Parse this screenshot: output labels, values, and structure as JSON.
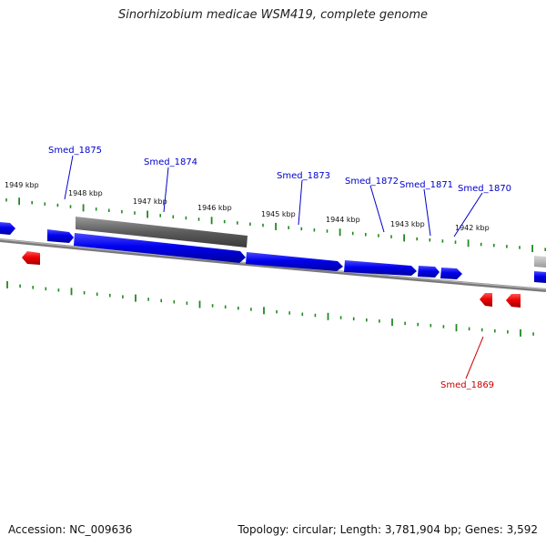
{
  "title": "Sinorhizobium medicae WSM419, complete genome",
  "footer": {
    "accession": "Accession: NC_009636",
    "summary": "Topology: circular; Length: 3,781,904 bp; Genes: 3,592"
  },
  "colors": {
    "forward_gene": "#0000ee",
    "reverse_gene": "#ee0000",
    "forward_label": "#0000cc",
    "reverse_label": "#cc0000",
    "tick": "#228822",
    "backbone": "#777777",
    "highlight": "#555555"
  },
  "kbp_labels": [
    "1949 kbp",
    "1948 kbp",
    "1947 kbp",
    "1946 kbp",
    "1945 kbp",
    "1944 kbp",
    "1943 kbp",
    "1942 kbp"
  ],
  "forward_genes": [
    "Smed_1875",
    "Smed_1874",
    "Smed_1873",
    "Smed_1872",
    "Smed_1871",
    "Smed_1870"
  ],
  "reverse_genes": [
    "Smed_1869"
  ]
}
